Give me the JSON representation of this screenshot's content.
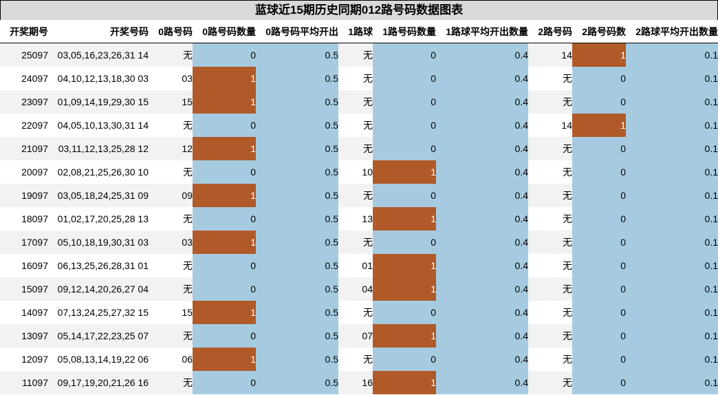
{
  "title": "蓝球近15期历史同期012路号码数据图表",
  "colors": {
    "header_bg": "#d9d9d9",
    "blue": "#a6cbe1",
    "orange": "#b05a2a",
    "stripe": "#f2f2f2"
  },
  "columns": [
    "开奖期号",
    "开奖号码",
    "0路号码",
    "0路号码数量",
    "0路号码平均开出",
    "1路球",
    "1路号码数量",
    "1路球平均开出数量",
    "2路号码",
    "2路号码数",
    "2路球平均开出数量"
  ],
  "rows": [
    {
      "issue": "25097",
      "numbers": "03,05,16,23,26,31 14",
      "r0": "无",
      "r0_count": "0",
      "r0_avg": "0.5",
      "r1": "无",
      "r1_count": "0",
      "r1_avg": "0.4",
      "r2": "14",
      "r2_count": "1",
      "r2_avg": "0.1"
    },
    {
      "issue": "24097",
      "numbers": "04,10,12,13,18,30 03",
      "r0": "03",
      "r0_count": "1",
      "r0_avg": "0.5",
      "r1": "无",
      "r1_count": "0",
      "r1_avg": "0.4",
      "r2": "无",
      "r2_count": "0",
      "r2_avg": "0.1"
    },
    {
      "issue": "23097",
      "numbers": "01,09,14,19,29,30 15",
      "r0": "15",
      "r0_count": "1",
      "r0_avg": "0.5",
      "r1": "无",
      "r1_count": "0",
      "r1_avg": "0.4",
      "r2": "无",
      "r2_count": "0",
      "r2_avg": "0.1"
    },
    {
      "issue": "22097",
      "numbers": "04,05,10,13,30,31 14",
      "r0": "无",
      "r0_count": "0",
      "r0_avg": "0.5",
      "r1": "无",
      "r1_count": "0",
      "r1_avg": "0.4",
      "r2": "14",
      "r2_count": "1",
      "r2_avg": "0.1"
    },
    {
      "issue": "21097",
      "numbers": "03,11,12,13,25,28 12",
      "r0": "12",
      "r0_count": "1",
      "r0_avg": "0.5",
      "r1": "无",
      "r1_count": "0",
      "r1_avg": "0.4",
      "r2": "无",
      "r2_count": "0",
      "r2_avg": "0.1"
    },
    {
      "issue": "20097",
      "numbers": "02,08,21,25,26,30 10",
      "r0": "无",
      "r0_count": "0",
      "r0_avg": "0.5",
      "r1": "10",
      "r1_count": "1",
      "r1_avg": "0.4",
      "r2": "无",
      "r2_count": "0",
      "r2_avg": "0.1"
    },
    {
      "issue": "19097",
      "numbers": "03,05,18,24,25,31 09",
      "r0": "09",
      "r0_count": "1",
      "r0_avg": "0.5",
      "r1": "无",
      "r1_count": "0",
      "r1_avg": "0.4",
      "r2": "无",
      "r2_count": "0",
      "r2_avg": "0.1"
    },
    {
      "issue": "18097",
      "numbers": "01,02,17,20,25,28 13",
      "r0": "无",
      "r0_count": "0",
      "r0_avg": "0.5",
      "r1": "13",
      "r1_count": "1",
      "r1_avg": "0.4",
      "r2": "无",
      "r2_count": "0",
      "r2_avg": "0.1"
    },
    {
      "issue": "17097",
      "numbers": "05,10,18,19,30,31 03",
      "r0": "03",
      "r0_count": "1",
      "r0_avg": "0.5",
      "r1": "无",
      "r1_count": "0",
      "r1_avg": "0.4",
      "r2": "无",
      "r2_count": "0",
      "r2_avg": "0.1"
    },
    {
      "issue": "16097",
      "numbers": "06,13,25,26,28,31 01",
      "r0": "无",
      "r0_count": "0",
      "r0_avg": "0.5",
      "r1": "01",
      "r1_count": "1",
      "r1_avg": "0.4",
      "r2": "无",
      "r2_count": "0",
      "r2_avg": "0.1"
    },
    {
      "issue": "15097",
      "numbers": "09,12,14,20,26,27 04",
      "r0": "无",
      "r0_count": "0",
      "r0_avg": "0.5",
      "r1": "04",
      "r1_count": "1",
      "r1_avg": "0.4",
      "r2": "无",
      "r2_count": "0",
      "r2_avg": "0.1"
    },
    {
      "issue": "14097",
      "numbers": "07,13,24,25,27,32 15",
      "r0": "15",
      "r0_count": "1",
      "r0_avg": "0.5",
      "r1": "无",
      "r1_count": "0",
      "r1_avg": "0.4",
      "r2": "无",
      "r2_count": "0",
      "r2_avg": "0.1"
    },
    {
      "issue": "13097",
      "numbers": "05,14,17,22,23,25 07",
      "r0": "无",
      "r0_count": "0",
      "r0_avg": "0.5",
      "r1": "07",
      "r1_count": "1",
      "r1_avg": "0.4",
      "r2": "无",
      "r2_count": "0",
      "r2_avg": "0.1"
    },
    {
      "issue": "12097",
      "numbers": "05,08,13,14,19,22 06",
      "r0": "06",
      "r0_count": "1",
      "r0_avg": "0.5",
      "r1": "无",
      "r1_count": "0",
      "r1_avg": "0.4",
      "r2": "无",
      "r2_count": "0",
      "r2_avg": "0.1"
    },
    {
      "issue": "11097",
      "numbers": "09,17,19,20,21,26 16",
      "r0": "无",
      "r0_count": "0",
      "r0_avg": "0.5",
      "r1": "16",
      "r1_count": "1",
      "r1_avg": "0.4",
      "r2": "无",
      "r2_count": "0",
      "r2_avg": "0.1"
    }
  ],
  "chart_data": {
    "type": "table",
    "title": "蓝球近15期历史同期012路号码数据图表",
    "columns": [
      "开奖期号",
      "开奖号码",
      "0路号码",
      "0路号码数量",
      "0路号码平均开出",
      "1路球",
      "1路号码数量",
      "1路球平均开出数量",
      "2路号码",
      "2路号码数",
      "2路球平均开出数量"
    ],
    "categories": [
      "25097",
      "24097",
      "23097",
      "22097",
      "21097",
      "20097",
      "19097",
      "18097",
      "17097",
      "16097",
      "15097",
      "14097",
      "13097",
      "12097",
      "11097"
    ],
    "series": [
      {
        "name": "0路号码数量",
        "values": [
          0,
          1,
          1,
          0,
          1,
          0,
          1,
          0,
          1,
          0,
          0,
          1,
          0,
          1,
          0
        ]
      },
      {
        "name": "0路号码平均开出",
        "values": [
          0.5,
          0.5,
          0.5,
          0.5,
          0.5,
          0.5,
          0.5,
          0.5,
          0.5,
          0.5,
          0.5,
          0.5,
          0.5,
          0.5,
          0.5
        ]
      },
      {
        "name": "1路号码数量",
        "values": [
          0,
          0,
          0,
          0,
          0,
          1,
          0,
          1,
          0,
          1,
          1,
          0,
          1,
          0,
          1
        ]
      },
      {
        "name": "1路球平均开出数量",
        "values": [
          0.4,
          0.4,
          0.4,
          0.4,
          0.4,
          0.4,
          0.4,
          0.4,
          0.4,
          0.4,
          0.4,
          0.4,
          0.4,
          0.4,
          0.4
        ]
      },
      {
        "name": "2路号码数",
        "values": [
          1,
          0,
          0,
          1,
          0,
          0,
          0,
          0,
          0,
          0,
          0,
          0,
          0,
          0,
          0
        ]
      },
      {
        "name": "2路球平均开出数量",
        "values": [
          0.1,
          0.1,
          0.1,
          0.1,
          0.1,
          0.1,
          0.1,
          0.1,
          0.1,
          0.1,
          0.1,
          0.1,
          0.1,
          0.1,
          0.1
        ]
      }
    ]
  }
}
